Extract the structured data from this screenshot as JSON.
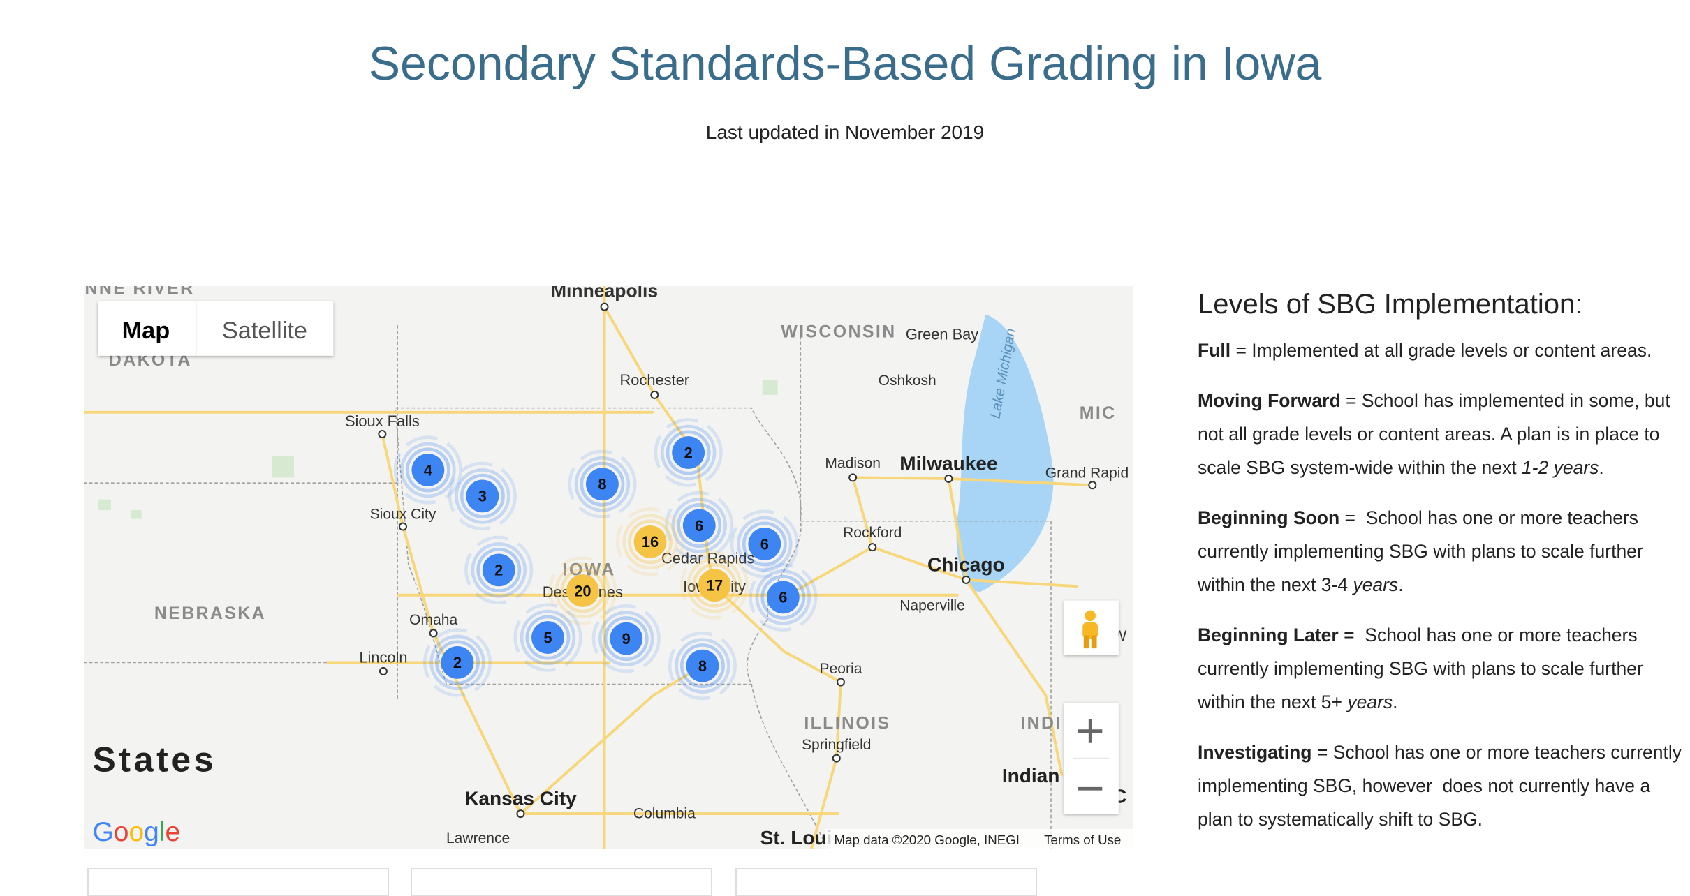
{
  "header": {
    "title": "Secondary Standards-Based Grading in Iowa",
    "subtitle": "Last updated in November 2019"
  },
  "map": {
    "controls": {
      "map": "Map",
      "satellite": "Satellite"
    },
    "places": [
      "NNE RIVER",
      "DAKOTA",
      "Minneapolis",
      "WISCONSIN",
      "Green Bay",
      "Rochester",
      "Oshkosh",
      "Lake Michigan",
      "MIC",
      "Sioux Falls",
      "Madison",
      "Milwaukee",
      "Grand Rapid",
      "Sioux City",
      "Rockford",
      "IOWA",
      "Cedar Rapids",
      "Chicago",
      "Des Moines",
      "Iowa City",
      "NEBRASKA",
      "Naperville",
      "Omaha",
      "W",
      "Lincoln",
      "Peoria",
      "ILLINOIS",
      "INDI",
      "Springfield",
      "Indian",
      "C",
      "States",
      "Kansas City",
      "Columbia",
      "Lawrence",
      "St. Loui"
    ],
    "clusters": [
      {
        "count": 4,
        "color": "#3d85f2"
      },
      {
        "count": 3,
        "color": "#3d85f2"
      },
      {
        "count": 8,
        "color": "#3d85f2"
      },
      {
        "count": 2,
        "color": "#3d85f2"
      },
      {
        "count": 2,
        "color": "#3d85f2"
      },
      {
        "count": 6,
        "color": "#3d85f2"
      },
      {
        "count": 16,
        "color": "#f6c445"
      },
      {
        "count": 6,
        "color": "#3d85f2"
      },
      {
        "count": 20,
        "color": "#f6c445"
      },
      {
        "count": 17,
        "color": "#f6c445"
      },
      {
        "count": 6,
        "color": "#3d85f2"
      },
      {
        "count": 5,
        "color": "#3d85f2"
      },
      {
        "count": 9,
        "color": "#3d85f2"
      },
      {
        "count": 2,
        "color": "#3d85f2"
      },
      {
        "count": 8,
        "color": "#3d85f2"
      }
    ],
    "logo": "Google",
    "attribution": "Map data ©2020 Google, INEGI",
    "terms": "Terms of Use"
  },
  "legend": {
    "heading": "Levels of SBG Implementation:",
    "items": [
      {
        "term": "Full",
        "text": " = Implemented at all grade levels or content areas."
      },
      {
        "term": "Moving Forward",
        "text": " = School has implemented in some, but not all grade levels or content areas. A plan is in place to scale SBG system-wide within the next ",
        "em": "1-2 years",
        "tail": "."
      },
      {
        "term": "Beginning Soon",
        "text": " =  School has one or more teachers currently implementing SBG with plans to scale further within the next 3-4 ",
        "em": "years",
        "tail": "."
      },
      {
        "term": "Beginning Later",
        "text": " =  School has one or more teachers currently implementing SBG with plans to scale further within the next 5+ ",
        "em": "years",
        "tail": "."
      },
      {
        "term": "Investigating",
        "text": " = School has one or more teachers currently implementing SBG, however  does not currently have a plan to systematically shift to SBG."
      }
    ]
  }
}
